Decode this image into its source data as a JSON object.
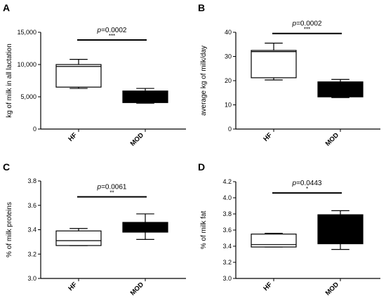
{
  "chart_data": [
    {
      "panel": "A",
      "type": "boxplot",
      "ylabel": "kg of milk in all lactation",
      "ylim": [
        0,
        15000
      ],
      "yticks": [
        "0",
        "5,000",
        "10,000",
        "15,000"
      ],
      "categories": [
        "HF",
        "MOD"
      ],
      "boxes": [
        {
          "category": "HF",
          "min": 6300,
          "q1": 6500,
          "median": 9700,
          "q3": 10000,
          "max": 10800,
          "fill": "#ffffff"
        },
        {
          "category": "MOD",
          "min": 4000,
          "q1": 4100,
          "median": 5300,
          "q3": 5900,
          "max": 6300,
          "fill": "#000000"
        }
      ],
      "significance": {
        "p_label": "p",
        "p_value": "=0.0002",
        "stars": "***",
        "y": 13800
      }
    },
    {
      "panel": "B",
      "type": "boxplot",
      "ylabel": "average kg of milk/day",
      "ylim": [
        0,
        40
      ],
      "yticks": [
        "0",
        "10",
        "20",
        "30",
        "40"
      ],
      "categories": [
        "HF",
        "MOD"
      ],
      "boxes": [
        {
          "category": "HF",
          "min": 20.3,
          "q1": 21.2,
          "median": 32,
          "q3": 32.5,
          "max": 35.5,
          "fill": "#ffffff"
        },
        {
          "category": "MOD",
          "min": 13.0,
          "q1": 13.3,
          "median": 15.5,
          "q3": 19.5,
          "max": 20.5,
          "fill": "#000000"
        }
      ],
      "significance": {
        "p_label": "p",
        "p_value": "=0.0002",
        "stars": "***",
        "y": 39.5
      }
    },
    {
      "panel": "C",
      "type": "boxplot",
      "ylabel": "% of milk proteins",
      "ylim": [
        3.0,
        3.8
      ],
      "yticks": [
        "3.0",
        "3.2",
        "3.4",
        "3.6",
        "3.8"
      ],
      "categories": [
        "HF",
        "MOD"
      ],
      "boxes": [
        {
          "category": "HF",
          "min": 3.27,
          "q1": 3.27,
          "median": 3.31,
          "q3": 3.39,
          "max": 3.41,
          "fill": "#ffffff"
        },
        {
          "category": "MOD",
          "min": 3.32,
          "q1": 3.38,
          "median": 3.43,
          "q3": 3.46,
          "max": 3.53,
          "fill": "#000000"
        }
      ],
      "significance": {
        "p_label": "p",
        "p_value": "=0.0061",
        "stars": "**",
        "y": 3.67
      }
    },
    {
      "panel": "D",
      "type": "boxplot",
      "ylabel": "% of milk fat",
      "ylim": [
        3.0,
        4.2
      ],
      "yticks": [
        "3.0",
        "3.2",
        "3.4",
        "3.6",
        "3.8",
        "4.0",
        "4.2"
      ],
      "categories": [
        "HF",
        "MOD"
      ],
      "boxes": [
        {
          "category": "HF",
          "min": 3.39,
          "q1": 3.39,
          "median": 3.42,
          "q3": 3.55,
          "max": 3.56,
          "fill": "#ffffff"
        },
        {
          "category": "MOD",
          "min": 3.36,
          "q1": 3.43,
          "median": 3.55,
          "q3": 3.79,
          "max": 3.84,
          "fill": "#000000"
        }
      ],
      "significance": {
        "p_label": "p",
        "p_value": "=0.0443",
        "stars": "*",
        "y": 4.06
      }
    }
  ]
}
